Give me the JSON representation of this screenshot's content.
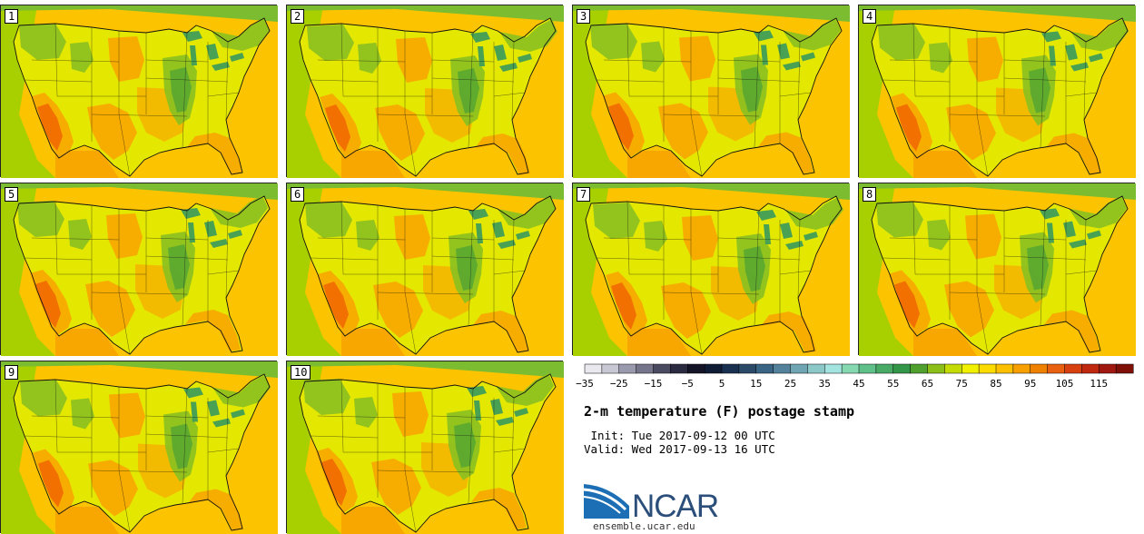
{
  "panels": [
    {
      "label": "1"
    },
    {
      "label": "2"
    },
    {
      "label": "3"
    },
    {
      "label": "4"
    },
    {
      "label": "5"
    },
    {
      "label": "6"
    },
    {
      "label": "7"
    },
    {
      "label": "8"
    },
    {
      "label": "9"
    },
    {
      "label": "10"
    }
  ],
  "colorbar": {
    "colors": [
      "#e8e8ee",
      "#c8c8d4",
      "#9a9aae",
      "#74748a",
      "#4a4a60",
      "#2a2a40",
      "#141428",
      "#101c36",
      "#1a3050",
      "#2a4a68",
      "#3a6484",
      "#54829c",
      "#70a6b4",
      "#8cc8c8",
      "#a4e4e0",
      "#86d8b0",
      "#60c08a",
      "#48aa64",
      "#349648",
      "#50a030",
      "#8cc018",
      "#c4dc04",
      "#f0f000",
      "#fcdc00",
      "#fcc000",
      "#f8a000",
      "#f08000",
      "#e86010",
      "#d84010",
      "#c02810",
      "#a01810",
      "#7e1008"
    ],
    "tick_labels": [
      "-35",
      "-25",
      "-15",
      "-5",
      "5",
      "15",
      "25",
      "35",
      "45",
      "55",
      "65",
      "75",
      "85",
      "95",
      "105",
      "115"
    ]
  },
  "title": "2-m temperature (F) postage stamp",
  "init_line": " Init: Tue 2017-09-12 00 UTC",
  "valid_line": "Valid: Wed 2017-09-13 16 UTC",
  "logo_text": "NCAR",
  "url": "ensemble.ucar.edu",
  "map_colors": {
    "ocean_atlantic": "#fcc400",
    "ocean_pacific": "#a8d000",
    "land_base": "#e4e800",
    "warm": "#f8a600",
    "hot": "#f06a00",
    "cool": "#8cc020",
    "cooler": "#5aa830",
    "lake": "#3c9a5a",
    "border": "#111111"
  }
}
